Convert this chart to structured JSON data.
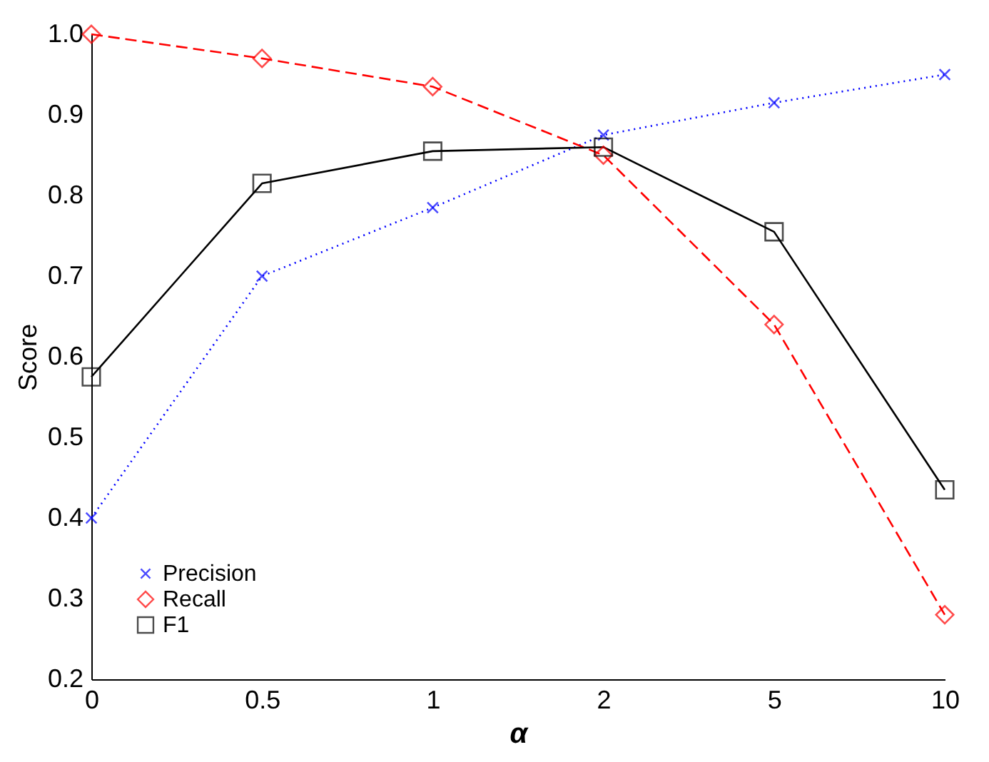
{
  "chart_data": {
    "type": "line",
    "xlabel": "α",
    "ylabel": "Score",
    "categories": [
      "0",
      "0.5",
      "1",
      "2",
      "5",
      "10"
    ],
    "ylim": [
      0.2,
      1.0
    ],
    "yticks": [
      0.2,
      0.3,
      0.4,
      0.5,
      0.6,
      0.7,
      0.8,
      0.9,
      {
        "value": 1.0,
        "label": "1.0"
      }
    ],
    "grid": false,
    "legend": "bottom left",
    "series": [
      {
        "name": "Precision",
        "color": "#0000ff",
        "marker": "cross",
        "line_style": "dotted",
        "values": [
          0.4,
          0.7,
          0.785,
          0.875,
          0.915,
          0.95
        ]
      },
      {
        "name": "Recall",
        "color": "#ff0000",
        "marker": "diamond",
        "line_style": "dashed",
        "values": [
          1.0,
          0.97,
          0.935,
          0.85,
          0.64,
          0.28
        ]
      },
      {
        "name": "F1",
        "color": "#000000",
        "marker": "square",
        "line_style": "solid",
        "values": [
          0.575,
          0.815,
          0.855,
          0.86,
          0.755,
          0.435
        ]
      }
    ]
  }
}
